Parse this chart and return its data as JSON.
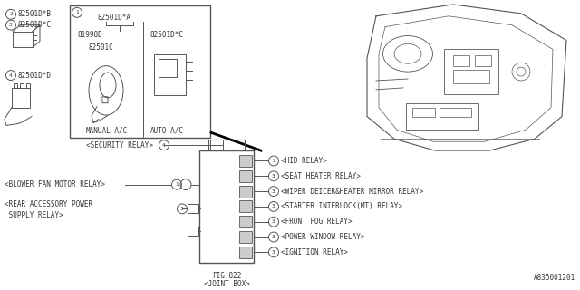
{
  "background_color": "#ffffff",
  "line_color": "#555555",
  "text_color": "#333333",
  "part_code": "A835001201",
  "fig_label": "FIG.822",
  "fig_name": "<JOINT BOX>",
  "top_left_items": [
    {
      "num": "2",
      "label": "82501D*B"
    },
    {
      "num": "3",
      "label": "82501D*C"
    },
    {
      "num": "4",
      "label": "82501D*D"
    }
  ],
  "box_inner_labels": [
    {
      "text": "82501D*A",
      "side": "left"
    },
    {
      "text": "81998D",
      "side": "left"
    },
    {
      "text": "82501C",
      "side": "left"
    },
    {
      "text": "82501D*C",
      "side": "right"
    },
    {
      "text": "MANUAL-A/C",
      "side": "left_bottom"
    },
    {
      "text": "AUTO-A/C",
      "side": "right_bottom"
    }
  ],
  "left_connectors": [
    {
      "num": "4",
      "label": "<SECURITY RELAY>",
      "type": "square_top"
    },
    {
      "num": "1",
      "label": "<BLOWER FAN MOTOR RELAY>",
      "type": "circle"
    },
    {
      "num": "3",
      "label": "<REAR ACCESSORY POWER\n SUPPLY RELAY>",
      "type": "square"
    },
    {
      "num": "",
      "label": "",
      "type": "square_extra"
    }
  ],
  "right_connectors": [
    {
      "num": "2",
      "label": "<HID RELAY>"
    },
    {
      "num": "3",
      "label": "<SEAT HEATER RELAY>"
    },
    {
      "num": "3",
      "label": "<WIPER DEICER&HEATER MIRROR RELAY>"
    },
    {
      "num": "3",
      "label": "<STARTER INTERLOCK(MT) RELAY>"
    },
    {
      "num": "3",
      "label": "<FRONT FOG RELAY>"
    },
    {
      "num": "3",
      "label": "<POWER WINDOW RELAY>"
    },
    {
      "num": "3",
      "label": "<IGNITION RELAY>"
    }
  ]
}
